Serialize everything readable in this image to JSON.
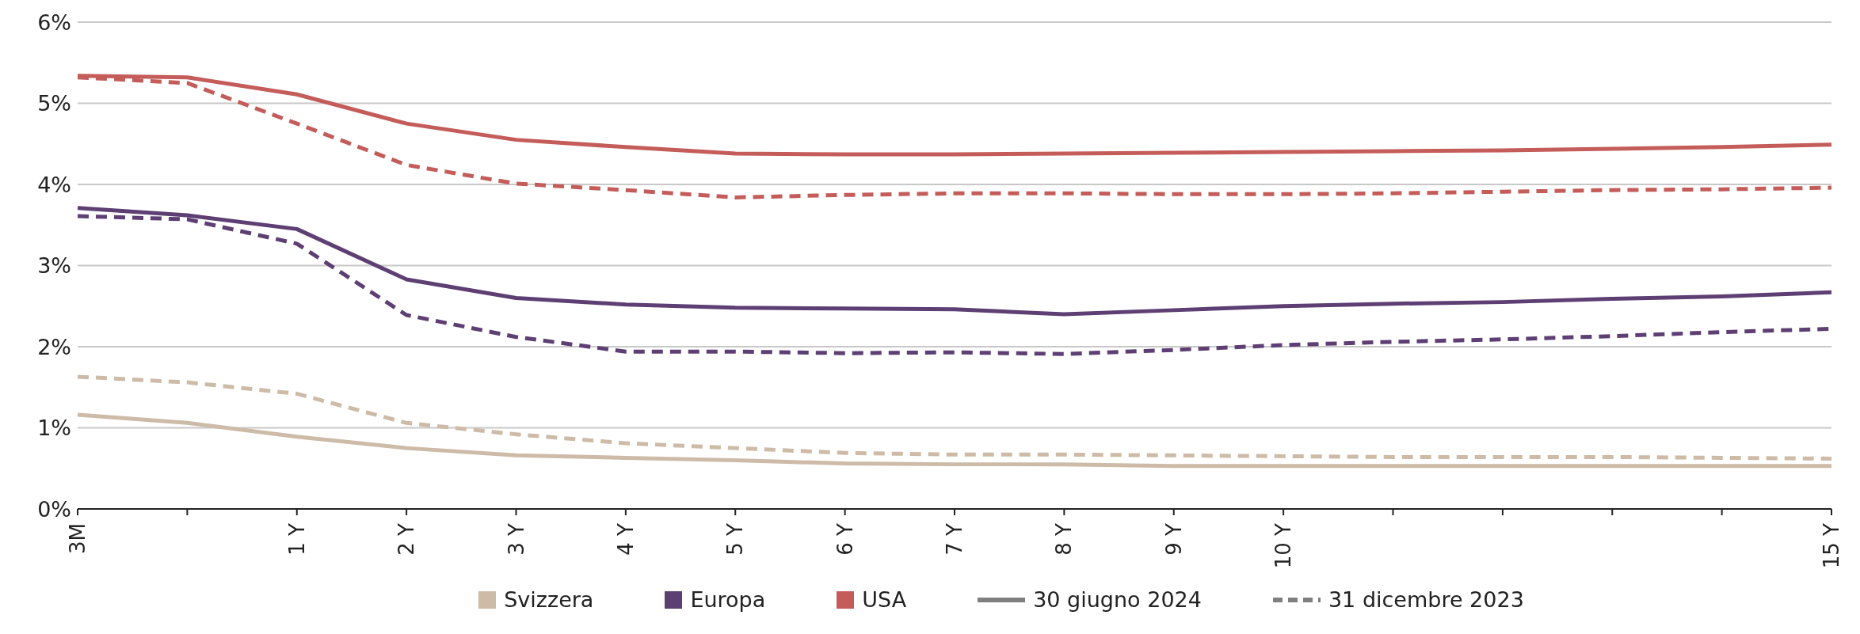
{
  "chart_data": {
    "type": "line",
    "categories": [
      "3M",
      null,
      "1 Y",
      "2 Y",
      "3 Y",
      "4 Y",
      "5 Y",
      "6 Y",
      "7 Y",
      "8 Y",
      "9 Y",
      "10 Y",
      null,
      null,
      null,
      null,
      "15 Y"
    ],
    "ylim": [
      0,
      6
    ],
    "yticks": [
      {
        "value": 0,
        "label": "0%"
      },
      {
        "value": 1,
        "label": "1%"
      },
      {
        "value": 2,
        "label": "2%"
      },
      {
        "value": 3,
        "label": "3%"
      },
      {
        "value": 4,
        "label": "4%"
      },
      {
        "value": 5,
        "label": "5%"
      },
      {
        "value": 6,
        "label": "6%"
      }
    ],
    "grid": "y",
    "legend": "bottom",
    "series": [
      {
        "name": "Svizzera",
        "color": "#cdbba7",
        "line_style": "solid",
        "values": [
          1.16,
          1.06,
          0.89,
          0.75,
          0.66,
          0.63,
          0.6,
          0.56,
          0.55,
          0.55,
          0.53,
          0.53,
          0.53,
          0.53,
          0.53,
          0.53,
          0.53
        ]
      },
      {
        "name": "Europa",
        "color": "#5e3f74",
        "line_style": "solid",
        "values": [
          3.71,
          3.62,
          3.45,
          2.83,
          2.6,
          2.52,
          2.48,
          2.47,
          2.46,
          2.4,
          2.45,
          2.5,
          2.53,
          2.55,
          2.59,
          2.62,
          2.67
        ]
      },
      {
        "name": "USA",
        "color": "#c45c5a",
        "line_style": "solid",
        "values": [
          5.34,
          5.32,
          5.11,
          4.75,
          4.55,
          4.46,
          4.38,
          4.37,
          4.37,
          4.38,
          4.39,
          4.4,
          4.41,
          4.42,
          4.44,
          4.46,
          4.49
        ]
      },
      {
        "color": "#cdbba7",
        "line_style": "dashed",
        "values": [
          1.63,
          1.56,
          1.42,
          1.06,
          0.92,
          0.81,
          0.75,
          0.69,
          0.67,
          0.67,
          0.66,
          0.65,
          0.64,
          0.64,
          0.64,
          0.63,
          0.62
        ]
      },
      {
        "color": "#5e3f74",
        "line_style": "dashed",
        "values": [
          3.61,
          3.57,
          3.27,
          2.39,
          2.12,
          1.94,
          1.94,
          1.92,
          1.93,
          1.91,
          1.96,
          2.02,
          2.06,
          2.09,
          2.13,
          2.18,
          2.22
        ]
      },
      {
        "color": "#c45c5a",
        "line_style": "dashed",
        "values": [
          5.32,
          5.25,
          4.75,
          4.24,
          4.01,
          3.93,
          3.84,
          3.87,
          3.89,
          3.89,
          3.88,
          3.88,
          3.89,
          3.91,
          3.93,
          3.94,
          3.96
        ]
      }
    ],
    "annotations": [
      "30 giugno 2024",
      "31 dicembre 2023"
    ]
  }
}
